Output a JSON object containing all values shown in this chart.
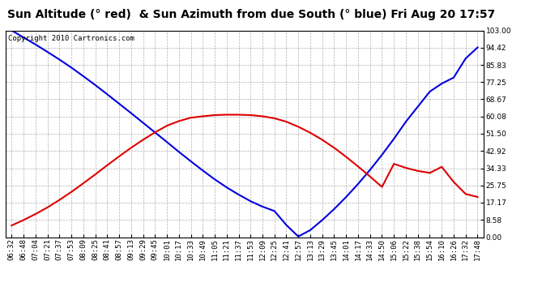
{
  "title": "Sun Altitude (° red)  & Sun Azimuth from due South (° blue) Fri Aug 20 17:57",
  "copyright_text": "Copyright 2010 Cartronics.com",
  "ylim": [
    0.0,
    103.0
  ],
  "yticks": [
    0.0,
    8.58,
    17.17,
    25.75,
    34.33,
    42.92,
    51.5,
    60.08,
    68.67,
    77.25,
    85.83,
    94.42,
    103.0
  ],
  "background_color": "#ffffff",
  "plot_bg_color": "#ffffff",
  "grid_color": "#b0b0b0",
  "blue_color": "#0000dd",
  "red_color": "#dd0000",
  "x_labels": [
    "06:32",
    "06:48",
    "07:04",
    "07:21",
    "07:37",
    "07:53",
    "08:09",
    "08:25",
    "08:41",
    "08:57",
    "09:13",
    "09:29",
    "09:45",
    "10:01",
    "10:17",
    "10:33",
    "10:49",
    "11:05",
    "11:21",
    "11:37",
    "11:53",
    "12:09",
    "12:25",
    "12:41",
    "12:57",
    "13:13",
    "13:29",
    "13:45",
    "14:01",
    "14:17",
    "14:33",
    "14:50",
    "15:06",
    "15:22",
    "15:38",
    "15:54",
    "16:10",
    "16:26",
    "17:32",
    "17:48"
  ],
  "blue_data": [
    103.0,
    99.5,
    96.0,
    92.3,
    88.5,
    84.5,
    80.2,
    75.8,
    71.2,
    66.5,
    61.8,
    57.0,
    52.2,
    47.4,
    42.5,
    37.8,
    33.2,
    28.8,
    24.8,
    21.2,
    17.9,
    15.2,
    13.0,
    6.0,
    0.3,
    3.5,
    8.5,
    14.0,
    20.0,
    26.5,
    33.5,
    41.0,
    49.0,
    57.5,
    65.0,
    72.5,
    76.5,
    79.5,
    89.0,
    94.5
  ],
  "red_data": [
    5.8,
    8.5,
    11.5,
    14.8,
    18.5,
    22.5,
    26.8,
    31.2,
    35.8,
    40.2,
    44.5,
    48.5,
    52.2,
    55.5,
    57.8,
    59.5,
    60.2,
    60.8,
    61.0,
    61.0,
    60.8,
    60.2,
    59.2,
    57.5,
    55.0,
    52.0,
    48.5,
    44.5,
    40.0,
    35.2,
    30.2,
    25.0,
    36.5,
    34.5,
    33.0,
    32.0,
    35.0,
    27.5,
    21.5,
    20.0
  ],
  "title_fontsize": 10,
  "tick_fontsize": 6.5,
  "copyright_fontsize": 6.5,
  "line_width": 1.5
}
